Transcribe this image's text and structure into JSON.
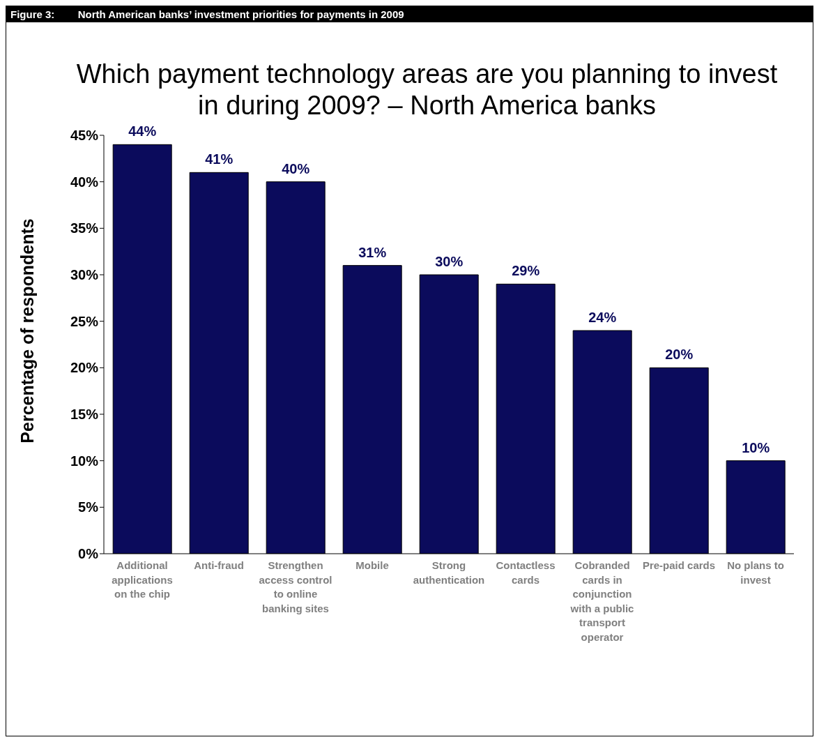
{
  "chart_data": {
    "type": "bar",
    "title": "Figure 3:        North American banks’ investment priorities for payments in 2009",
    "subtitle": "Which payment technology areas are you planning to invest in during 2009? – North America  banks",
    "ylabel": "Percentage of respondents",
    "categories": [
      "Additional applications on the chip",
      "Anti-fraud",
      "Strengthen access control to online banking sites",
      "Mobile",
      "Strong authentication",
      "Contactless cards",
      "Cobranded cards in conjunction with a public transport operator",
      "Pre-paid cards",
      "No plans to invest"
    ],
    "values": [
      44,
      41,
      40,
      31,
      30,
      29,
      24,
      20,
      10
    ],
    "value_labels": [
      "44%",
      "41%",
      "40%",
      "31%",
      "30%",
      "29%",
      "24%",
      "20%",
      "10%"
    ],
    "color": "#0b0b5c",
    "ylim": [
      0,
      45
    ],
    "yticks": [
      {
        "value": 0,
        "label": "0%"
      },
      {
        "value": 5,
        "label": "5%"
      },
      {
        "value": 10,
        "label": "10%"
      },
      {
        "value": 15,
        "label": "15%"
      },
      {
        "value": 20,
        "label": "20%"
      },
      {
        "value": 25,
        "label": "25%"
      },
      {
        "value": 30,
        "label": "30%"
      },
      {
        "value": 35,
        "label": "35%"
      },
      {
        "value": 40,
        "label": "40%"
      },
      {
        "value": 45,
        "label": "45%"
      }
    ],
    "grid": false,
    "legend": false
  }
}
